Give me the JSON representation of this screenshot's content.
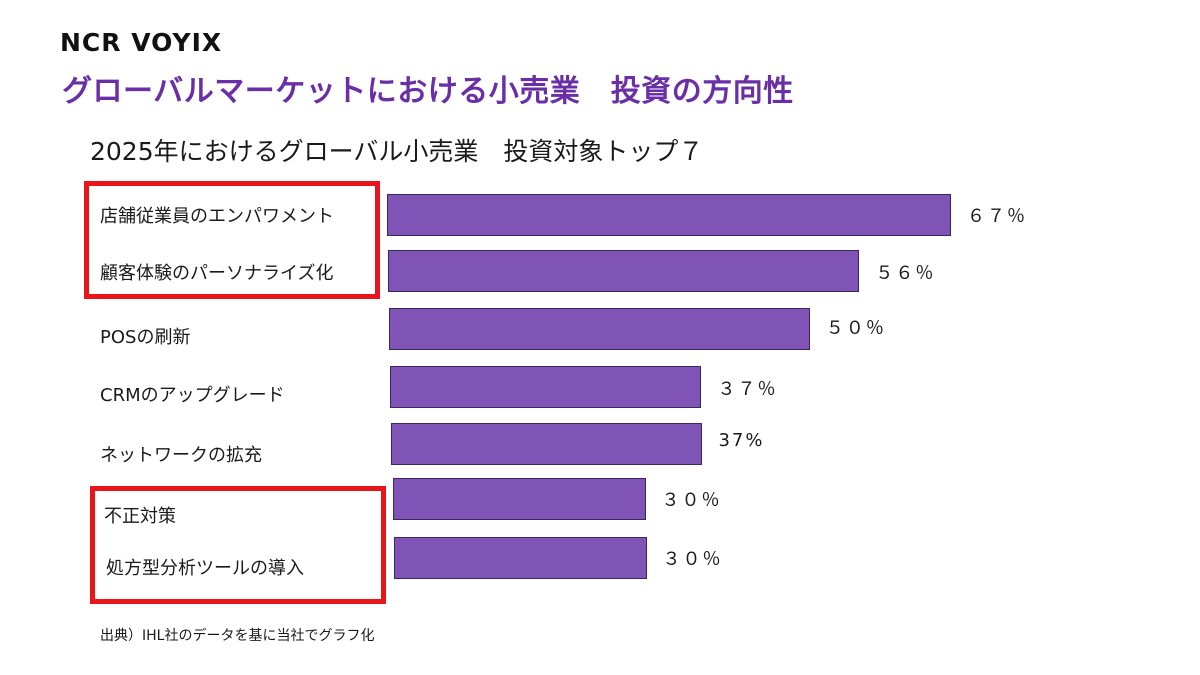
{
  "logo": "NCR VOYIX",
  "heading": "グローバルマーケットにおける小売業　投資の方向性",
  "chart_data": {
    "type": "bar",
    "orientation": "horizontal",
    "title": "2025年におけるグローバル小売業　投資対象トップ７",
    "categories": [
      "店舗従業員のエンパワメント",
      "顧客体験のパーソナライズ化",
      "POSの刷新",
      "CRMのアップグレード",
      "ネットワークの拡充",
      "不正対策",
      "処方型分析ツールの導入"
    ],
    "values": [
      67,
      56,
      50,
      37,
      37,
      30,
      30
    ],
    "value_labels": [
      "６７％",
      "５６％",
      "５０％",
      "３７％",
      "37%",
      "３０％",
      "３０％"
    ],
    "bar_color": "#8053b6",
    "highlight_color": "#e8161b",
    "highlight_groups": [
      [
        0,
        1
      ],
      [
        5,
        6
      ]
    ]
  },
  "source": "出典）IHL社のデータを基に当社でグラフ化"
}
